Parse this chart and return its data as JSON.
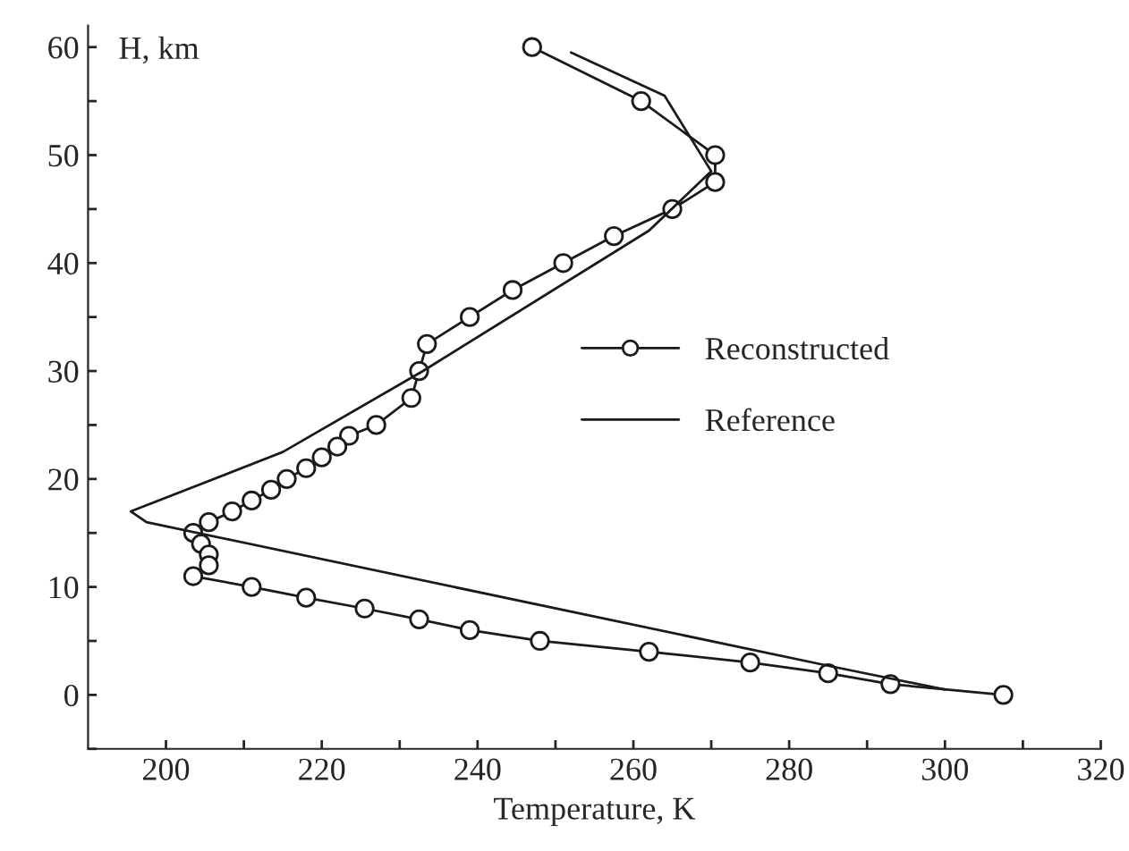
{
  "chart_data": {
    "type": "line",
    "xlabel": "Temperature, K",
    "ylabel": "H, km",
    "xlim": [
      190,
      320
    ],
    "ylim": [
      -5,
      62
    ],
    "xticks": [
      200,
      {
        "value": 210,
        "label": null
      },
      220,
      {
        "value": 230,
        "label": null
      },
      240,
      {
        "value": 250,
        "label": null
      },
      260,
      {
        "value": 270,
        "label": null
      },
      280,
      {
        "value": 290,
        "label": null
      },
      300,
      {
        "value": 310,
        "label": null
      },
      320
    ],
    "yticks": [
      {
        "value": -5,
        "label": null
      },
      0,
      {
        "value": 5,
        "label": null
      },
      10,
      {
        "value": 15,
        "label": null
      },
      20,
      {
        "value": 25,
        "label": null
      },
      30,
      {
        "value": 35,
        "label": null
      },
      40,
      {
        "value": 45,
        "label": null
      },
      50,
      {
        "value": 55,
        "label": null
      },
      60
    ],
    "grid": false,
    "legend": "center right",
    "series": [
      {
        "name": "Reconstructed",
        "color": "#1a1a1a",
        "marker": "circle",
        "line_style": "solid",
        "x": [
          247,
          261,
          270.5,
          270.5,
          265,
          257.5,
          251,
          244.5,
          239,
          233.5,
          232.5,
          231.5,
          227,
          223.5,
          222,
          220,
          218,
          215.5,
          213.5,
          211,
          208.5,
          205.5,
          203.5,
          204.5,
          205.5,
          205.5,
          203.5,
          211,
          218,
          225.5,
          232.5,
          239,
          248,
          262,
          275,
          285,
          293,
          307.5
        ],
        "values": [
          60,
          55,
          50,
          47.5,
          45,
          42.5,
          40,
          37.5,
          35,
          32.5,
          30,
          27.5,
          25,
          24,
          23,
          22,
          21,
          20,
          19,
          18,
          17,
          16,
          15,
          14,
          13,
          12,
          11,
          10,
          9,
          8,
          7,
          6,
          5,
          4,
          3,
          2,
          1,
          0
        ]
      },
      {
        "name": "Reference",
        "color": "#1a1a1a",
        "marker": "none",
        "line_style": "solid",
        "x": [
          252,
          264,
          270,
          262,
          233,
          215,
          195.5,
          197.5,
          285,
          300
        ],
        "values": [
          59.5,
          55.5,
          48.5,
          43,
          30,
          22.5,
          17,
          16,
          2.7,
          0.5
        ]
      }
    ]
  }
}
